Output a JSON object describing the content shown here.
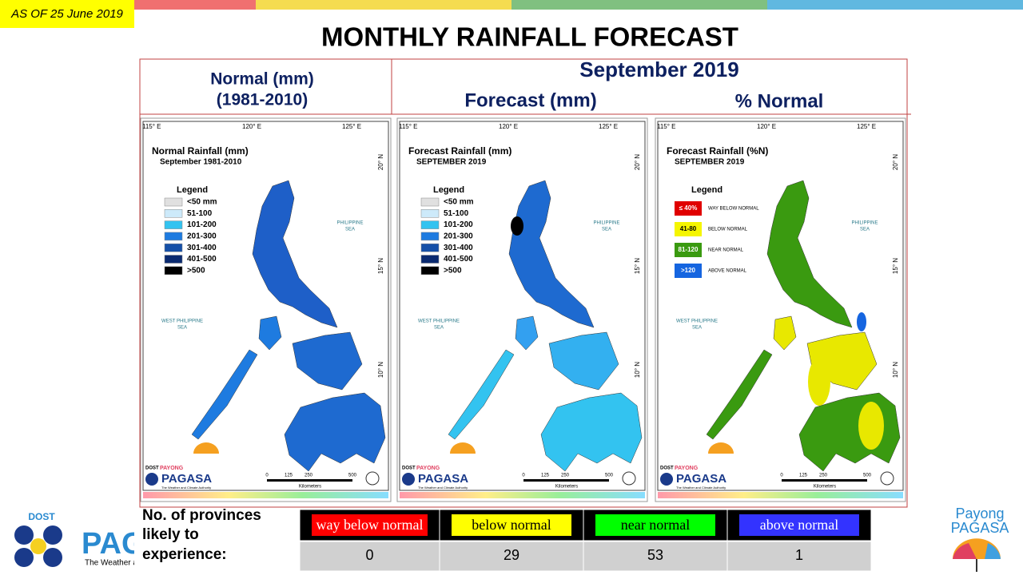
{
  "header": {
    "as_of": "AS OF 25 June 2019",
    "title": "MONTHLY RAINFALL FORECAST"
  },
  "headings": {
    "normal": [
      "Normal (mm)",
      "(1981-2010)"
    ],
    "month": "September 2019",
    "forecast": "Forecast (mm)",
    "percent": "% Normal"
  },
  "map_labels": {
    "lon": [
      "115° E",
      "120° E",
      "125° E"
    ],
    "lat": [
      "20° N",
      "15° N",
      "10° N"
    ],
    "sea_east": [
      "PHILIPPINE",
      "SEA"
    ],
    "sea_west": [
      "WEST PHILIPPINE",
      "SEA"
    ],
    "scale": [
      "0",
      "125",
      "250",
      "500"
    ],
    "scale_unit": "Kilometers",
    "logo": [
      "DOST",
      "PAYONG",
      "PAGASA",
      "The Weather and Climate Authority"
    ]
  },
  "maps": [
    {
      "title": "Normal Rainfall (mm)",
      "subtitle": "September 1981-2010",
      "legend_title": "Legend",
      "legend": [
        {
          "label": "<50 mm",
          "color": "#e0e0e0"
        },
        {
          "label": "51-100",
          "color": "#cdeafa"
        },
        {
          "label": "101-200",
          "color": "#33c3f0"
        },
        {
          "label": "201-300",
          "color": "#1e7be0"
        },
        {
          "label": "301-400",
          "color": "#1550a8"
        },
        {
          "label": "401-500",
          "color": "#0a2a70"
        },
        {
          "label": ">500",
          "color": "#000000"
        }
      ]
    },
    {
      "title": "Forecast Rainfall (mm)",
      "subtitle": "SEPTEMBER 2019",
      "legend_title": "Legend",
      "legend": [
        {
          "label": "<50 mm",
          "color": "#e0e0e0"
        },
        {
          "label": "51-100",
          "color": "#cdeafa"
        },
        {
          "label": "101-200",
          "color": "#33c3f0"
        },
        {
          "label": "201-300",
          "color": "#1e7be0"
        },
        {
          "label": "301-400",
          "color": "#1550a8"
        },
        {
          "label": "401-500",
          "color": "#0a2a70"
        },
        {
          "label": ">500",
          "color": "#000000"
        }
      ]
    },
    {
      "title": "Forecast Rainfall (%N)",
      "subtitle": "SEPTEMBER 2019",
      "legend_title": "Legend",
      "legend": [
        {
          "label": "≤ 40%",
          "description": "WAY BELOW NORMAL",
          "color": "#e00000"
        },
        {
          "label": "41-80",
          "description": "BELOW NORMAL",
          "color": "#f5f500"
        },
        {
          "label": "81-120",
          "description": "NEAR NORMAL",
          "color": "#3a9a10"
        },
        {
          "label": ">120",
          "description": "ABOVE NORMAL",
          "color": "#1565e0"
        }
      ]
    }
  ],
  "table": {
    "caption": [
      "No. of provinces",
      "likely  to",
      "experience:"
    ],
    "header": [
      {
        "label": "way below normal",
        "color": "#ff0000"
      },
      {
        "label": "below normal",
        "color": "#ffff00"
      },
      {
        "label": "near normal",
        "color": "#00ff00"
      },
      {
        "label": "above normal",
        "color": "#3333ff"
      }
    ],
    "rows": [
      [
        0,
        29,
        53,
        1
      ]
    ]
  },
  "footer": {
    "left": [
      "DOST",
      "PAGASA",
      "The Weather and Climate Authority"
    ],
    "right": [
      "Payong",
      "PAGASA"
    ]
  }
}
